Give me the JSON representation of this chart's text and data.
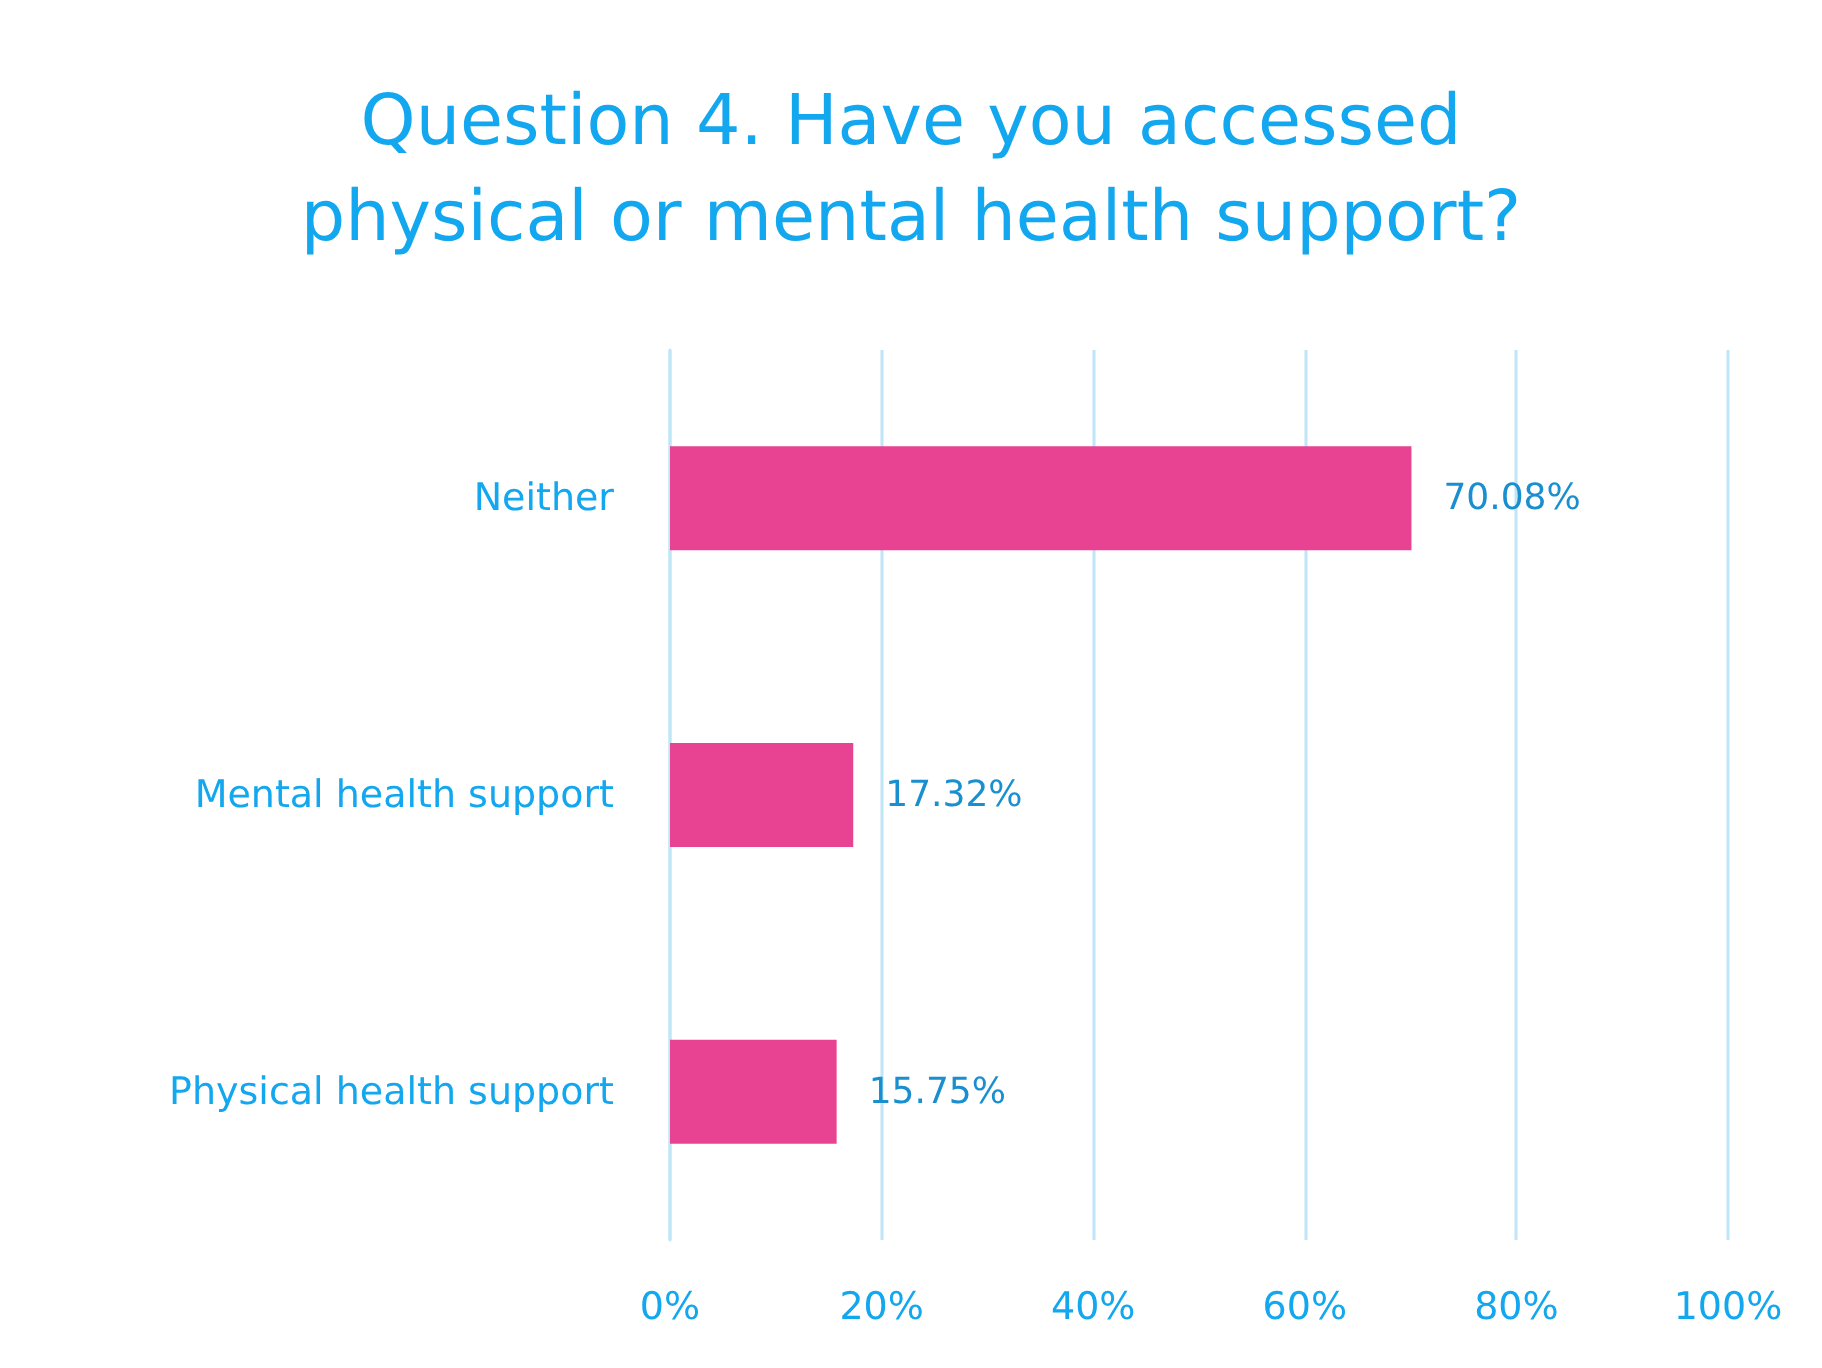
{
  "chart_data": {
    "type": "bar",
    "orientation": "horizontal",
    "title": "Question 4. Have you accessed\nphysical or mental health support?",
    "categories": [
      "Neither",
      "Mental health support",
      "Physical health support"
    ],
    "values": [
      70.08,
      17.32,
      15.75
    ],
    "color": "#e84393",
    "value_labels": [
      "70.08%",
      "17.32%",
      "15.75%"
    ],
    "xlim": [
      0,
      100
    ],
    "xticks": [
      {
        "value": 0,
        "label": "0%"
      },
      {
        "value": 20,
        "label": "20%"
      },
      {
        "value": 40,
        "label": "40%"
      },
      {
        "value": 60,
        "label": "60%"
      },
      {
        "value": 80,
        "label": "80%"
      },
      {
        "value": 100,
        "label": "100%"
      }
    ],
    "grid": "x"
  }
}
